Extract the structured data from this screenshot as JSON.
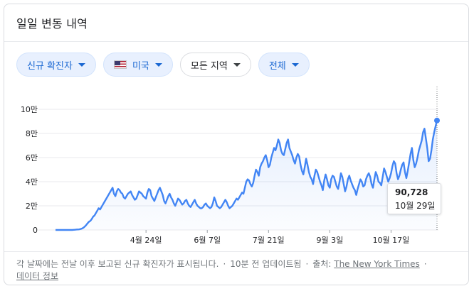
{
  "header": {
    "title": "일일 변동 내역"
  },
  "filters": {
    "metric": "신규 확진자",
    "region": "미국",
    "area": "모든 지역",
    "scope": "전체"
  },
  "colors": {
    "line": "#4285f4",
    "chip_blue_text": "#1967d2",
    "grid": "#e8eaed"
  },
  "icons": {
    "region_flag": "us-flag-icon",
    "chip_caret": "caret-down-icon"
  },
  "chart_data": {
    "type": "area",
    "title": "",
    "xlabel": "",
    "ylabel": "",
    "ylim": [
      0,
      100000
    ],
    "y_ticks": [
      {
        "value": 0,
        "label": "0"
      },
      {
        "value": 20000,
        "label": "2만"
      },
      {
        "value": 40000,
        "label": "4만"
      },
      {
        "value": 60000,
        "label": "6만"
      },
      {
        "value": 80000,
        "label": "8만"
      },
      {
        "value": 100000,
        "label": "10만"
      }
    ],
    "x_ticks": [
      {
        "index": 65,
        "label": "4월 24일"
      },
      {
        "index": 109,
        "label": "6월 7일"
      },
      {
        "index": 153,
        "label": "7월 21일"
      },
      {
        "index": 197,
        "label": "9월 3일"
      },
      {
        "index": 241,
        "label": "10월 17일"
      }
    ],
    "grid": true,
    "series": [
      {
        "values": [
          0,
          0,
          0,
          0,
          0,
          0,
          0,
          0,
          0,
          0,
          0,
          0,
          0,
          100,
          200,
          300,
          400,
          500,
          800,
          1200,
          1800,
          2800,
          4000,
          5500,
          6800,
          7500,
          9000,
          11000,
          12000,
          14000,
          16000,
          18000,
          17000,
          19000,
          21000,
          23000,
          25000,
          27000,
          29000,
          31000,
          33000,
          35000,
          30000,
          28000,
          32000,
          34000,
          33000,
          31000,
          30000,
          27000,
          26000,
          28000,
          30000,
          31000,
          32000,
          29000,
          27000,
          25000,
          26000,
          29000,
          32000,
          31000,
          30000,
          28000,
          27000,
          26000,
          31000,
          34000,
          33000,
          28000,
          26000,
          24000,
          27000,
          30000,
          33000,
          35000,
          32000,
          29000,
          24000,
          22000,
          25000,
          28000,
          30000,
          27000,
          25000,
          22000,
          20000,
          23000,
          26000,
          25000,
          23000,
          21000,
          22000,
          24000,
          25000,
          22000,
          20000,
          19000,
          21000,
          23000,
          25000,
          22000,
          20000,
          19000,
          18000,
          18000,
          19000,
          21000,
          22000,
          20000,
          19000,
          18000,
          19000,
          22000,
          27000,
          24000,
          20000,
          19000,
          18000,
          19000,
          21000,
          23000,
          25000,
          23000,
          20000,
          18000,
          19000,
          20000,
          22000,
          24000,
          26000,
          25000,
          27000,
          29000,
          31000,
          30000,
          35000,
          40000,
          42000,
          41000,
          38000,
          36000,
          39000,
          45000,
          50000,
          48000,
          45000,
          52000,
          55000,
          57000,
          60000,
          62000,
          58000,
          52000,
          54000,
          60000,
          64000,
          68000,
          66000,
          70000,
          75000,
          72000,
          66000,
          63000,
          62000,
          67000,
          72000,
          75000,
          68000,
          65000,
          62000,
          58000,
          55000,
          60000,
          63000,
          61000,
          54000,
          49000,
          46000,
          52000,
          59000,
          54000,
          48000,
          44000,
          42000,
          38000,
          45000,
          50000,
          48000,
          44000,
          40000,
          37000,
          33000,
          41000,
          46000,
          42000,
          37000,
          35000,
          42000,
          45000,
          44000,
          40000,
          36000,
          34000,
          40000,
          47000,
          44000,
          38000,
          32000,
          36000,
          42000,
          45000,
          41000,
          38000,
          35000,
          33000,
          29000,
          34000,
          38000,
          42000,
          40000,
          36000,
          37000,
          42000,
          45000,
          47000,
          44000,
          38000,
          35000,
          42000,
          48000,
          45000,
          40000,
          39000,
          37000,
          44000,
          51000,
          48000,
          44000,
          40000,
          43000,
          47000,
          53000,
          57000,
          55000,
          47000,
          42000,
          45000,
          50000,
          54000,
          56000,
          48000,
          43000,
          49000,
          56000,
          63000,
          68000,
          58000,
          52000,
          55000,
          60000,
          66000,
          70000,
          74000,
          81000,
          84000,
          76000,
          68000,
          57000,
          59000,
          66000,
          75000,
          81000,
          86000,
          90728
        ]
      }
    ],
    "tooltip": {
      "value": "90,728",
      "date": "10월 29일"
    }
  },
  "footer": {
    "note": "각 날짜에는 전날 이후 보고된 신규 확진자가 표시됩니다.",
    "updated": "10분 전 업데이트됨",
    "source_label": "출처:",
    "source": "The New York Times",
    "data_info": "데이터 정보"
  }
}
